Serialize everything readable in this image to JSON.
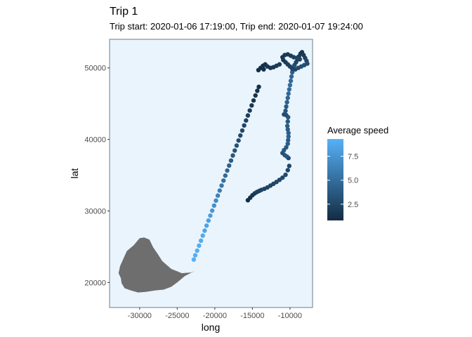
{
  "chart_data": {
    "type": "scatter",
    "title": "Trip 1",
    "subtitle": "Trip start: 2020-01-06 17:19:00, Trip end: 2020-01-07 19:24:00",
    "xlabel": "long",
    "ylabel": "lat",
    "xlim": [
      -34000,
      -7000
    ],
    "ylim": [
      16500,
      54000
    ],
    "x_ticks": [
      -30000,
      -25000,
      -20000,
      -15000,
      -10000
    ],
    "x_tick_labels": [
      "-30000",
      "-25000",
      "-20000",
      "-15000",
      "-10000"
    ],
    "y_ticks": [
      20000,
      30000,
      40000,
      50000
    ],
    "y_tick_labels": [
      "20000",
      "30000",
      "40000",
      "50000"
    ],
    "grid": false,
    "panel_background": "#eaf4fc",
    "panel_border": "#6b7c8d",
    "land_color": "#6e6e6e",
    "legend": {
      "title": "Average speed",
      "position": "right",
      "breaks": [
        2.5,
        5.0,
        7.5
      ],
      "break_labels": [
        "2.5",
        "5.0",
        "7.5"
      ],
      "range": [
        0.8,
        9.3
      ],
      "low_color": "#132b43",
      "high_color": "#56b1f7"
    },
    "land_polygon": [
      [
        -32600,
        22300
      ],
      [
        -31700,
        24400
      ],
      [
        -30800,
        25200
      ],
      [
        -30000,
        26200
      ],
      [
        -29400,
        26300
      ],
      [
        -28700,
        26000
      ],
      [
        -28200,
        24900
      ],
      [
        -27600,
        24000
      ],
      [
        -27000,
        23000
      ],
      [
        -25800,
        21900
      ],
      [
        -24400,
        21300
      ],
      [
        -23200,
        21400
      ],
      [
        -22700,
        21600
      ],
      [
        -24000,
        20900
      ],
      [
        -25000,
        20000
      ],
      [
        -25800,
        19400
      ],
      [
        -26800,
        19000
      ],
      [
        -27900,
        18900
      ],
      [
        -29100,
        18700
      ],
      [
        -30200,
        18600
      ],
      [
        -31200,
        18900
      ],
      [
        -32000,
        19200
      ],
      [
        -32400,
        19900
      ],
      [
        -32500,
        20600
      ],
      [
        -32800,
        21300
      ]
    ],
    "series": [
      {
        "points": [
          [
            -22800,
            23200,
            9.3
          ],
          [
            -22600,
            23800,
            9.2
          ],
          [
            -22350,
            24450,
            9.1
          ],
          [
            -22100,
            25150,
            9.0
          ],
          [
            -21850,
            25850,
            8.9
          ],
          [
            -21600,
            26550,
            8.8
          ],
          [
            -21350,
            27250,
            8.6
          ],
          [
            -21100,
            27950,
            8.4
          ],
          [
            -20850,
            28650,
            8.2
          ],
          [
            -20600,
            29350,
            8.0
          ],
          [
            -20350,
            30050,
            7.6
          ],
          [
            -20100,
            30750,
            7.2
          ],
          [
            -19850,
            31450,
            6.8
          ],
          [
            -19600,
            32150,
            6.4
          ],
          [
            -19350,
            32850,
            6.0
          ],
          [
            -19100,
            33550,
            5.6
          ],
          [
            -18850,
            34250,
            5.2
          ],
          [
            -18600,
            34950,
            4.8
          ],
          [
            -18350,
            35650,
            4.5
          ],
          [
            -18100,
            36350,
            4.2
          ],
          [
            -17850,
            37050,
            3.9
          ],
          [
            -17600,
            37750,
            3.6
          ],
          [
            -17350,
            38450,
            3.4
          ],
          [
            -17100,
            39150,
            3.2
          ],
          [
            -16850,
            39850,
            3.0
          ],
          [
            -16600,
            40550,
            2.8
          ],
          [
            -16350,
            41250,
            2.6
          ],
          [
            -16100,
            41950,
            2.4
          ],
          [
            -15850,
            42650,
            2.2
          ],
          [
            -15600,
            43350,
            2.0
          ],
          [
            -15350,
            44050,
            1.8
          ],
          [
            -15100,
            44750,
            1.6
          ],
          [
            -14850,
            45450,
            1.4
          ],
          [
            -14600,
            46150,
            1.3
          ],
          [
            -14350,
            46800,
            1.2
          ],
          [
            -14150,
            47350,
            1.1
          ],
          [
            -15600,
            31500,
            1.0
          ],
          [
            -15300,
            31850,
            1.2
          ],
          [
            -15000,
            32200,
            1.5
          ],
          [
            -14700,
            32450,
            1.8
          ],
          [
            -14400,
            32650,
            2.0
          ],
          [
            -14100,
            32800,
            2.1
          ],
          [
            -13800,
            32950,
            2.2
          ],
          [
            -13400,
            33100,
            2.3
          ],
          [
            -13000,
            33300,
            2.4
          ],
          [
            -12600,
            33550,
            2.5
          ],
          [
            -12200,
            33800,
            2.5
          ],
          [
            -11800,
            34050,
            2.6
          ],
          [
            -11400,
            34350,
            2.6
          ],
          [
            -11000,
            34650,
            2.7
          ],
          [
            -10600,
            35050,
            2.7
          ],
          [
            -10300,
            35700,
            2.6
          ],
          [
            -10100,
            36300,
            2.5
          ],
          [
            -10200,
            37400,
            2.6
          ],
          [
            -10400,
            37600,
            3.4
          ],
          [
            -10700,
            37800,
            3.6
          ],
          [
            -11000,
            38100,
            3.3
          ],
          [
            -10800,
            38500,
            3.5
          ],
          [
            -10500,
            38900,
            3.7
          ],
          [
            -10300,
            39400,
            3.9
          ],
          [
            -10250,
            39900,
            4.0
          ],
          [
            -10200,
            40400,
            4.2
          ],
          [
            -10200,
            40900,
            4.1
          ],
          [
            -10300,
            41400,
            4.0
          ],
          [
            -10350,
            41900,
            3.9
          ],
          [
            -10300,
            42500,
            3.7
          ],
          [
            -10250,
            43100,
            3.6
          ],
          [
            -10500,
            43400,
            3.2
          ],
          [
            -10800,
            43500,
            3.0
          ],
          [
            -10600,
            44000,
            3.4
          ],
          [
            -10500,
            44600,
            3.8
          ],
          [
            -10400,
            45200,
            4.2
          ],
          [
            -10300,
            45800,
            4.5
          ],
          [
            -10200,
            46400,
            4.7
          ],
          [
            -10100,
            47000,
            4.9
          ],
          [
            -10000,
            47600,
            5.0
          ],
          [
            -9900,
            48200,
            4.8
          ],
          [
            -9800,
            48800,
            4.5
          ],
          [
            -9700,
            49400,
            4.0
          ],
          [
            -9600,
            50000,
            3.5
          ],
          [
            -9400,
            50400,
            3.0
          ],
          [
            -9200,
            50800,
            2.5
          ],
          [
            -9000,
            51200,
            2.0
          ],
          [
            -8800,
            51600,
            1.8
          ],
          [
            -8600,
            52000,
            1.6
          ],
          [
            -8400,
            52200,
            1.5
          ],
          [
            -8200,
            51800,
            1.8
          ],
          [
            -8000,
            51400,
            2.2
          ],
          [
            -7800,
            51000,
            2.6
          ],
          [
            -7700,
            50600,
            2.8
          ],
          [
            -8100,
            50400,
            3.0
          ],
          [
            -8500,
            50200,
            3.1
          ],
          [
            -8900,
            50000,
            2.9
          ],
          [
            -9300,
            49800,
            2.6
          ],
          [
            -9700,
            49900,
            2.4
          ],
          [
            -10000,
            50200,
            2.2
          ],
          [
            -10300,
            50500,
            2.0
          ],
          [
            -10600,
            50800,
            1.8
          ],
          [
            -10900,
            51100,
            1.6
          ],
          [
            -11000,
            51500,
            1.5
          ],
          [
            -10700,
            51800,
            1.6
          ],
          [
            -10300,
            51900,
            1.7
          ],
          [
            -9900,
            51700,
            1.9
          ],
          [
            -9500,
            51500,
            2.1
          ],
          [
            -9100,
            51400,
            2.3
          ],
          [
            -8700,
            51200,
            2.4
          ],
          [
            -11400,
            50500,
            2.0
          ],
          [
            -11800,
            50300,
            1.8
          ],
          [
            -12200,
            50100,
            1.6
          ],
          [
            -12600,
            50000,
            1.5
          ],
          [
            -13000,
            50200,
            1.4
          ],
          [
            -13300,
            50500,
            1.3
          ],
          [
            -13600,
            50300,
            1.2
          ],
          [
            -13900,
            50000,
            1.1
          ],
          [
            -14200,
            49700,
            1.0
          ],
          [
            -13500,
            49800,
            1.1
          ]
        ]
      }
    ]
  }
}
